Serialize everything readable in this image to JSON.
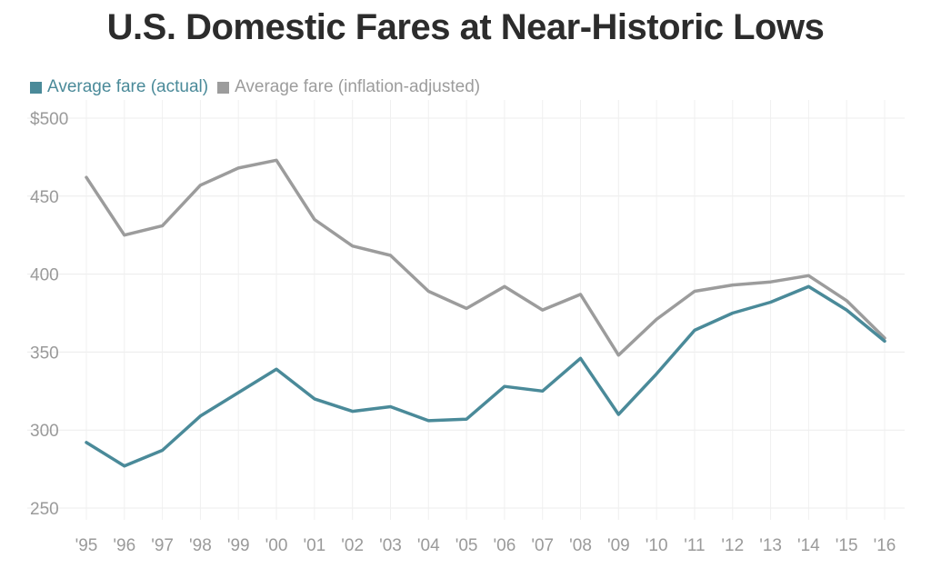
{
  "title": "U.S. Domestic Fares at Near-Historic Lows",
  "legend": [
    {
      "label": "Average fare (actual)",
      "color": "#4a8a99"
    },
    {
      "label": "Average fare (inflation-adjusted)",
      "color": "#9c9c9c"
    }
  ],
  "chart_data": {
    "type": "line",
    "title": "U.S. Domestic Fares at Near-Historic Lows",
    "xlabel": "",
    "ylabel": "",
    "categories": [
      "'95",
      "'96",
      "'97",
      "'98",
      "'99",
      "'00",
      "'01",
      "'02",
      "'03",
      "'04",
      "'05",
      "'06",
      "'07",
      "'08",
      "'09",
      "'10",
      "'11",
      "'12",
      "'13",
      "'14",
      "'15",
      "'16"
    ],
    "y_tick_labels": [
      "$500",
      "450",
      "400",
      "350",
      "300",
      "250"
    ],
    "y_ticks": [
      500,
      450,
      400,
      350,
      300,
      250
    ],
    "ylim": [
      250,
      500
    ],
    "grid": true,
    "legend_position": "top-left",
    "series": [
      {
        "name": "Average fare (actual)",
        "color": "#4a8a99",
        "values": [
          292,
          277,
          287,
          309,
          324,
          339,
          320,
          312,
          315,
          306,
          307,
          328,
          325,
          346,
          310,
          336,
          364,
          375,
          382,
          392,
          377,
          357
        ]
      },
      {
        "name": "Average fare (inflation-adjusted)",
        "color": "#9c9c9c",
        "values": [
          462,
          425,
          431,
          457,
          468,
          473,
          435,
          418,
          412,
          389,
          378,
          392,
          377,
          387,
          348,
          371,
          389,
          393,
          395,
          399,
          383,
          359
        ]
      }
    ]
  }
}
